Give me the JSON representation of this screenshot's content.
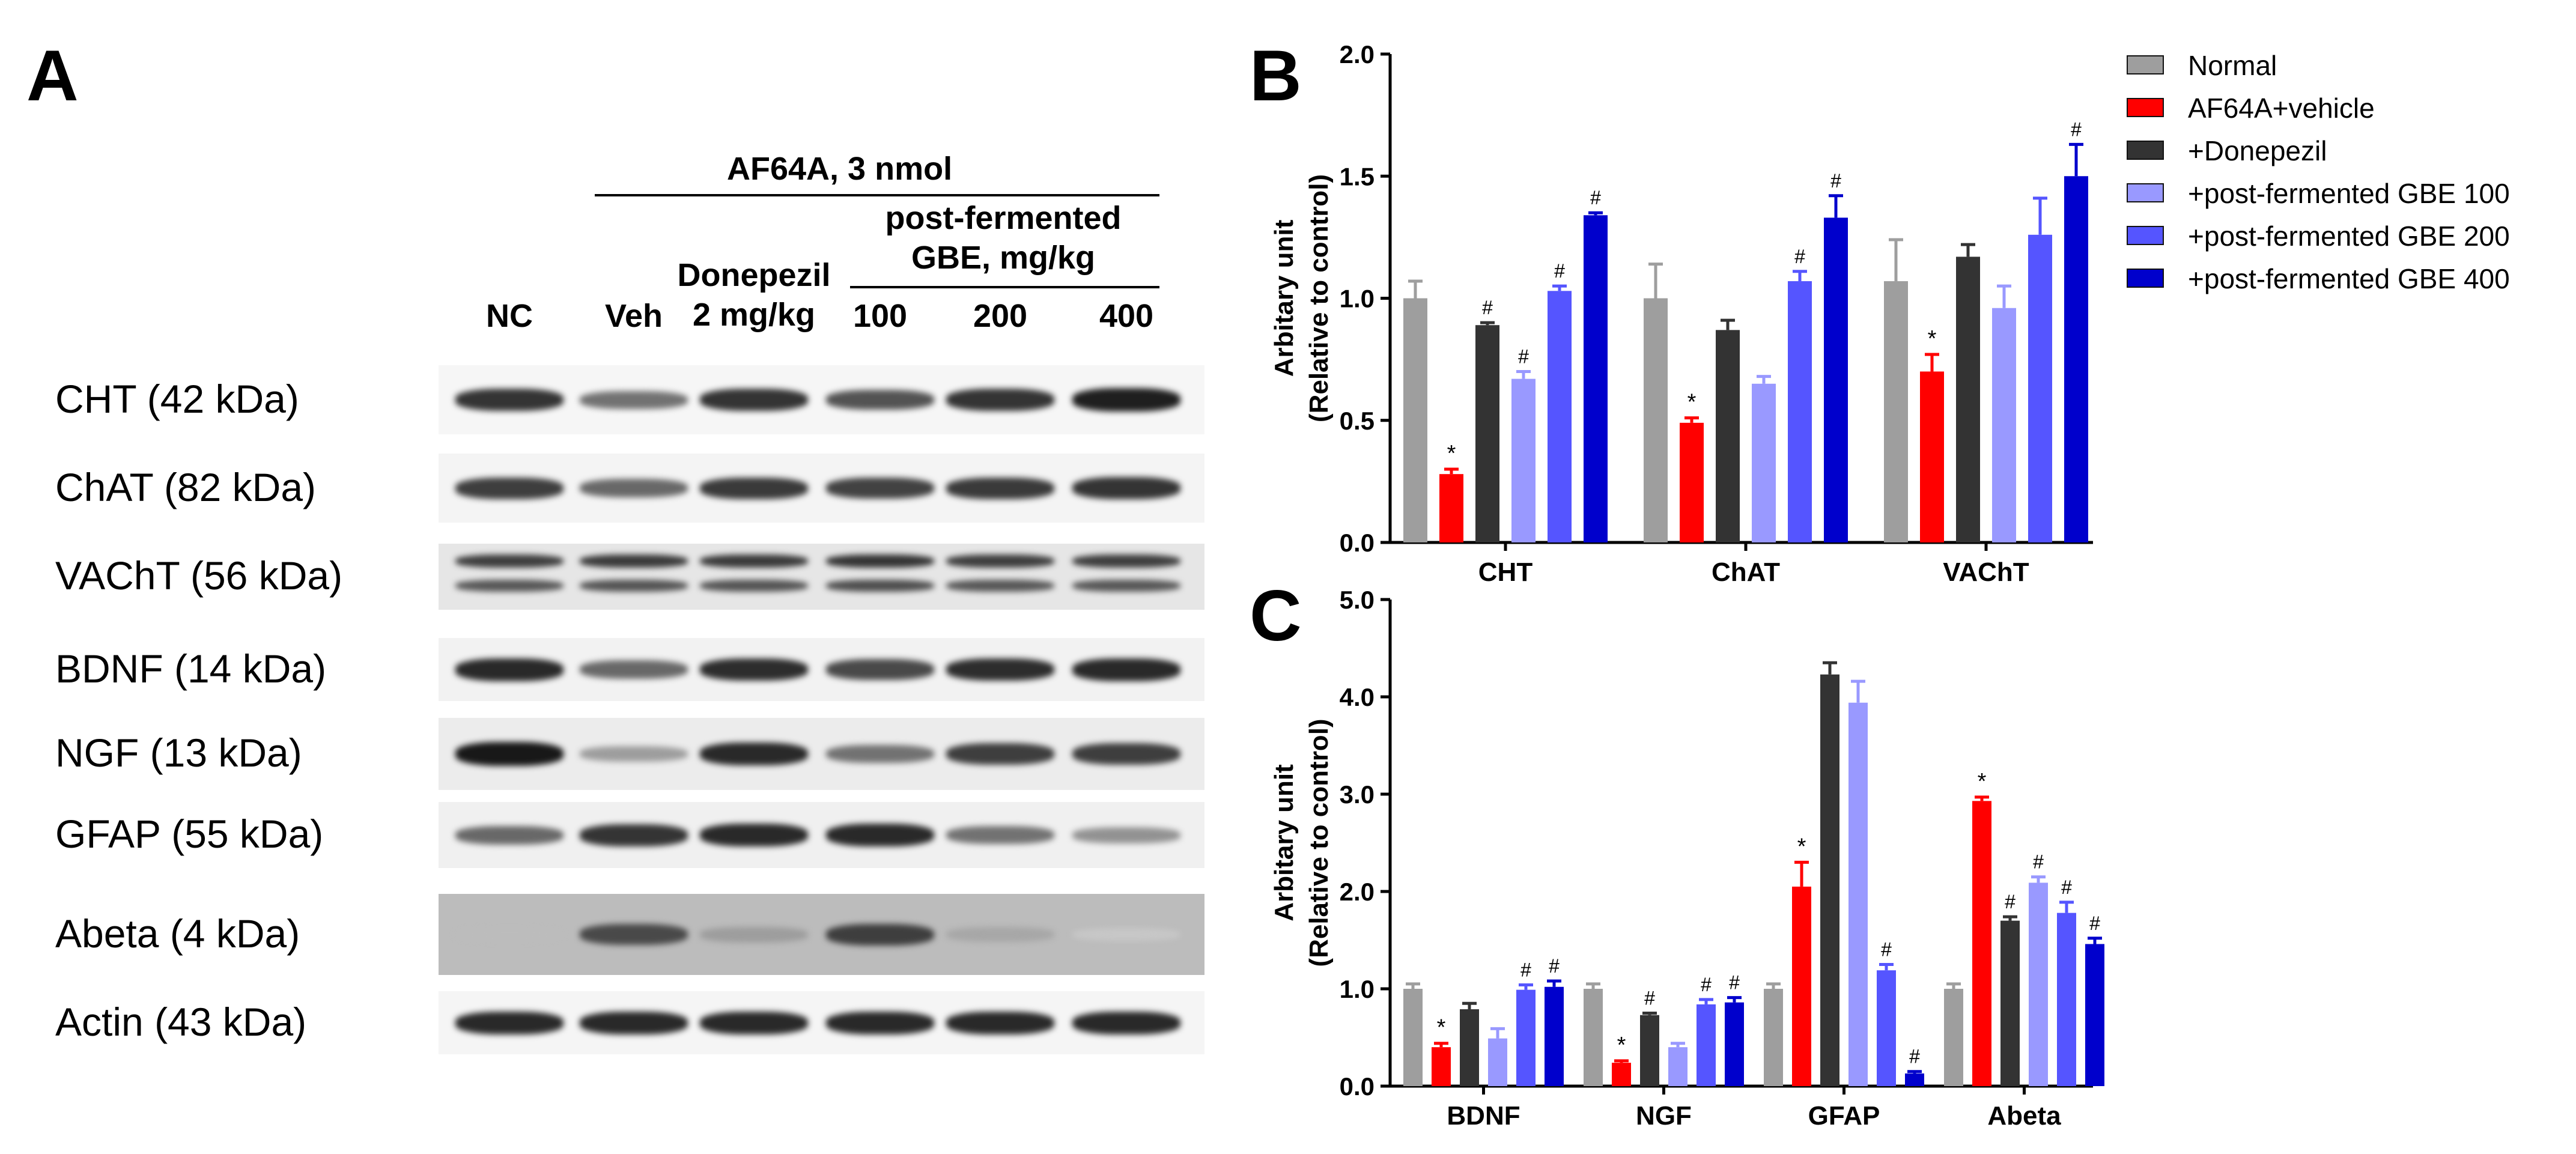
{
  "panels": {
    "a": "A",
    "b": "B",
    "c": "C"
  },
  "blot": {
    "group_label": "AF64A, 3 nmol",
    "subgroup_label": "post-fermented GBE, mg/kg",
    "lanes": [
      "NC",
      "Veh",
      "Donepezil 2 mg/kg",
      "100",
      "200",
      "400"
    ],
    "rows": [
      {
        "label": "CHT (42 kDa)",
        "intensity": [
          0.85,
          0.55,
          0.85,
          0.7,
          0.85,
          0.95
        ]
      },
      {
        "label": "ChAT (82 kDa)",
        "intensity": [
          0.8,
          0.6,
          0.82,
          0.78,
          0.82,
          0.85
        ]
      },
      {
        "label": "VAChT (56 kDa)",
        "intensity": [
          0.8,
          0.82,
          0.82,
          0.85,
          0.8,
          0.8
        ]
      },
      {
        "label": "BDNF (14 kDa)",
        "intensity": [
          0.9,
          0.6,
          0.88,
          0.75,
          0.88,
          0.9
        ]
      },
      {
        "label": "NGF (13 kDa)",
        "intensity": [
          0.98,
          0.35,
          0.9,
          0.55,
          0.8,
          0.8
        ]
      },
      {
        "label": "GFAP (55 kDa)",
        "intensity": [
          0.6,
          0.85,
          0.9,
          0.9,
          0.55,
          0.4
        ]
      },
      {
        "label": "Abeta (4 kDa)",
        "intensity": [
          0.2,
          0.75,
          0.35,
          0.8,
          0.3,
          0.15
        ]
      },
      {
        "label": "Actin (43 kDa)",
        "intensity": [
          0.9,
          0.9,
          0.9,
          0.9,
          0.9,
          0.9
        ]
      }
    ]
  },
  "legend": [
    {
      "name": "Normal",
      "color": "#9e9e9e"
    },
    {
      "name": "AF64A+vehicle",
      "color": "#ff0000"
    },
    {
      "name": "+Donepezil",
      "color": "#333333"
    },
    {
      "name": "+post-fermented GBE 100",
      "color": "#9999ff"
    },
    {
      "name": "+post-fermented GBE 200",
      "color": "#5555ff"
    },
    {
      "name": "+post-fermented GBE 400",
      "color": "#0000cc"
    }
  ],
  "chart_data": [
    {
      "type": "bar",
      "panel": "B",
      "ylabel": "Arbitary unit (Relative to control)",
      "ylabel_lines": [
        "Arbitary unit",
        "(Relative to control)"
      ],
      "ylim": [
        0,
        2.0
      ],
      "yticks": [
        "0.0",
        "0.5",
        "1.0",
        "1.5",
        "2.0"
      ],
      "categories": [
        "CHT",
        "ChAT",
        "VAChT"
      ],
      "series": [
        {
          "name": "Normal",
          "values": [
            1.0,
            1.0,
            1.07
          ],
          "errors": [
            0.07,
            0.14,
            0.17
          ],
          "marks": [
            "",
            "",
            ""
          ]
        },
        {
          "name": "AF64A+vehicle",
          "values": [
            0.28,
            0.49,
            0.7
          ],
          "errors": [
            0.02,
            0.02,
            0.07
          ],
          "marks": [
            "*",
            "*",
            "*"
          ]
        },
        {
          "name": "+Donepezil",
          "values": [
            0.89,
            0.87,
            1.17
          ],
          "errors": [
            0.01,
            0.04,
            0.05
          ],
          "marks": [
            "#",
            "",
            ""
          ]
        },
        {
          "name": "+post-fermented GBE 100",
          "values": [
            0.67,
            0.65,
            0.96
          ],
          "errors": [
            0.03,
            0.03,
            0.09
          ],
          "marks": [
            "#",
            "",
            ""
          ]
        },
        {
          "name": "+post-fermented GBE 200",
          "values": [
            1.03,
            1.07,
            1.26
          ],
          "errors": [
            0.02,
            0.04,
            0.15
          ],
          "marks": [
            "#",
            "#",
            ""
          ]
        },
        {
          "name": "+post-fermented GBE 400",
          "values": [
            1.34,
            1.33,
            1.5
          ],
          "errors": [
            0.01,
            0.09,
            0.13
          ],
          "marks": [
            "#",
            "#",
            "#"
          ]
        }
      ]
    },
    {
      "type": "bar",
      "panel": "C",
      "ylabel": "Arbitary unit (Relative to control)",
      "ylabel_lines": [
        "Arbitary unit",
        "(Relative to control)"
      ],
      "ylim": [
        0,
        5.0
      ],
      "yticks": [
        "0.0",
        "1.0",
        "2.0",
        "3.0",
        "4.0",
        "5.0"
      ],
      "categories": [
        "BDNF",
        "NGF",
        "GFAP",
        "Abeta"
      ],
      "series": [
        {
          "name": "Normal",
          "values": [
            1.0,
            1.0,
            1.0,
            1.0
          ],
          "errors": [
            0.05,
            0.05,
            0.05,
            0.05
          ],
          "marks": [
            "",
            "",
            "",
            ""
          ]
        },
        {
          "name": "AF64A+vehicle",
          "values": [
            0.4,
            0.24,
            2.05,
            2.93
          ],
          "errors": [
            0.04,
            0.02,
            0.25,
            0.04
          ],
          "marks": [
            "*",
            "*",
            "*",
            "*"
          ]
        },
        {
          "name": "+Donepezil",
          "values": [
            0.79,
            0.73,
            4.23,
            1.7
          ],
          "errors": [
            0.06,
            0.02,
            0.12,
            0.04
          ],
          "marks": [
            "",
            "#",
            "",
            "#"
          ]
        },
        {
          "name": "+post-fermented GBE 100",
          "values": [
            0.49,
            0.4,
            3.94,
            2.09
          ],
          "errors": [
            0.1,
            0.04,
            0.22,
            0.06
          ],
          "marks": [
            "",
            "",
            "",
            "#"
          ]
        },
        {
          "name": "+post-fermented GBE 200",
          "values": [
            0.99,
            0.84,
            1.19,
            1.78
          ],
          "errors": [
            0.05,
            0.05,
            0.06,
            0.11
          ],
          "marks": [
            "#",
            "#",
            "#",
            "#"
          ]
        },
        {
          "name": "+post-fermented GBE 400",
          "values": [
            1.02,
            0.86,
            0.13,
            1.46
          ],
          "errors": [
            0.06,
            0.05,
            0.02,
            0.06
          ],
          "marks": [
            "#",
            "#",
            "#",
            "#"
          ]
        }
      ]
    }
  ]
}
